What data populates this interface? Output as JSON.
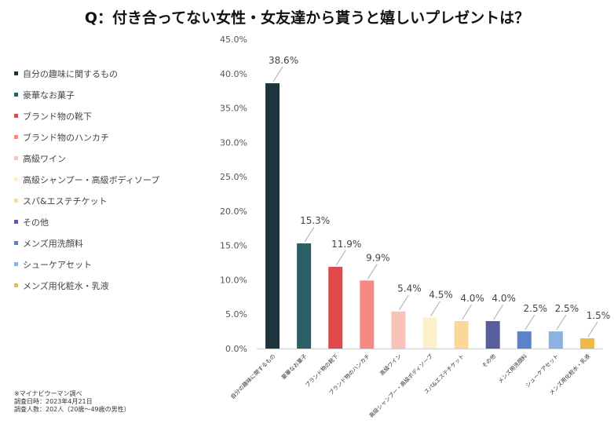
{
  "title": "Q：付き合ってない女性・女友達から貰うと嬉しいプレゼントは？",
  "notes": [
    "※マイナビウーマン調べ",
    "調査日時：2023年4月21日",
    "調査人数：202人（20歳〜49歳の男性）"
  ],
  "chart_data": {
    "type": "bar",
    "title": "Q：付き合ってない女性・女友達から貰うと嬉しいプレゼントは？",
    "categories": [
      "自分の趣味に関するもの",
      "豪華なお菓子",
      "ブランド物の靴下",
      "ブランド物のハンカチ",
      "高級ワイン",
      "高級シャンプー・高級ボディソープ",
      "スパ&エステチケット",
      "その他",
      "メンズ用洗顔料",
      "シューケアセット",
      "メンズ用化粧水・乳液"
    ],
    "values": [
      38.6,
      15.3,
      11.9,
      9.9,
      5.4,
      4.5,
      4.0,
      4.0,
      2.5,
      2.5,
      1.5
    ],
    "value_labels": [
      "38.6%",
      "15.3%",
      "11.9%",
      "9.9%",
      "5.4%",
      "4.5%",
      "4.0%",
      "4.0%",
      "2.5%",
      "2.5%",
      "1.5%"
    ],
    "colors": [
      "#1e3540",
      "#2a5f66",
      "#e04a4a",
      "#f58a82",
      "#f8c2b8",
      "#fcefc9",
      "#fbd89a",
      "#585e9c",
      "#5b84c8",
      "#8cb2e2",
      "#f0b84a"
    ],
    "ylim": [
      0,
      45
    ],
    "yticks": [
      0,
      5,
      10,
      15,
      20,
      25,
      30,
      35,
      40,
      45
    ],
    "ytick_labels": [
      "0.0%",
      "5.0%",
      "10.0%",
      "15.0%",
      "20.0%",
      "25.0%",
      "30.0%",
      "35.0%",
      "40.0%",
      "45.0%"
    ],
    "xlabel": "",
    "ylabel": "",
    "legend_position": "left",
    "grid": false
  }
}
